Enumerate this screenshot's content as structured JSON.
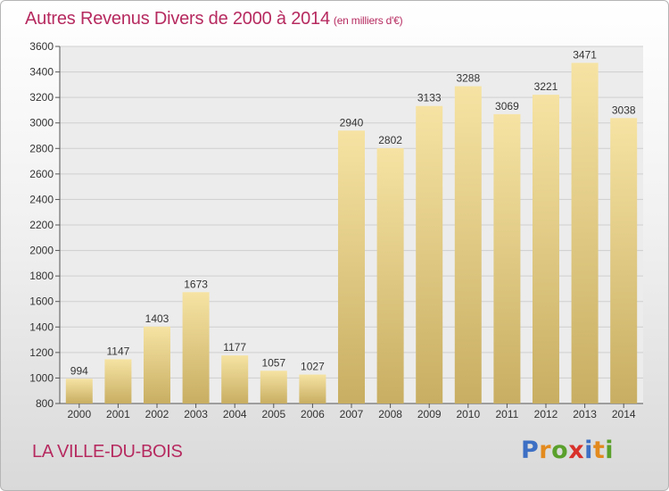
{
  "chart_data": {
    "type": "bar",
    "title": "Autres Revenus Divers de 2000 à 2014",
    "subtitle": "(en milliers d'€)",
    "categories": [
      "2000",
      "2001",
      "2002",
      "2003",
      "2004",
      "2005",
      "2006",
      "2007",
      "2008",
      "2009",
      "2010",
      "2011",
      "2012",
      "2013",
      "2014"
    ],
    "values": [
      994,
      1147,
      1403,
      1673,
      1177,
      1057,
      1027,
      2940,
      2802,
      3133,
      3288,
      3069,
      3221,
      3471,
      3038
    ],
    "ylim": [
      800,
      3600
    ],
    "yticks": [
      800,
      1000,
      1200,
      1400,
      1600,
      1800,
      2000,
      2200,
      2400,
      2600,
      2800,
      3000,
      3200,
      3400,
      3600
    ],
    "grid": true,
    "bar_color": "#e2c97a",
    "grid_color": "#cfcfcf"
  },
  "location": "LA VILLE-DU-BOIS",
  "brand": {
    "letters": [
      "P",
      "r",
      "o",
      "x",
      "i",
      "t",
      "i"
    ],
    "colors": [
      "#3d6fc4",
      "#e38a1e",
      "#5aa02c",
      "#d8312b",
      "#3d6fc4",
      "#e38a1e",
      "#5aa02c"
    ]
  },
  "accent_color": "#b62a5f"
}
